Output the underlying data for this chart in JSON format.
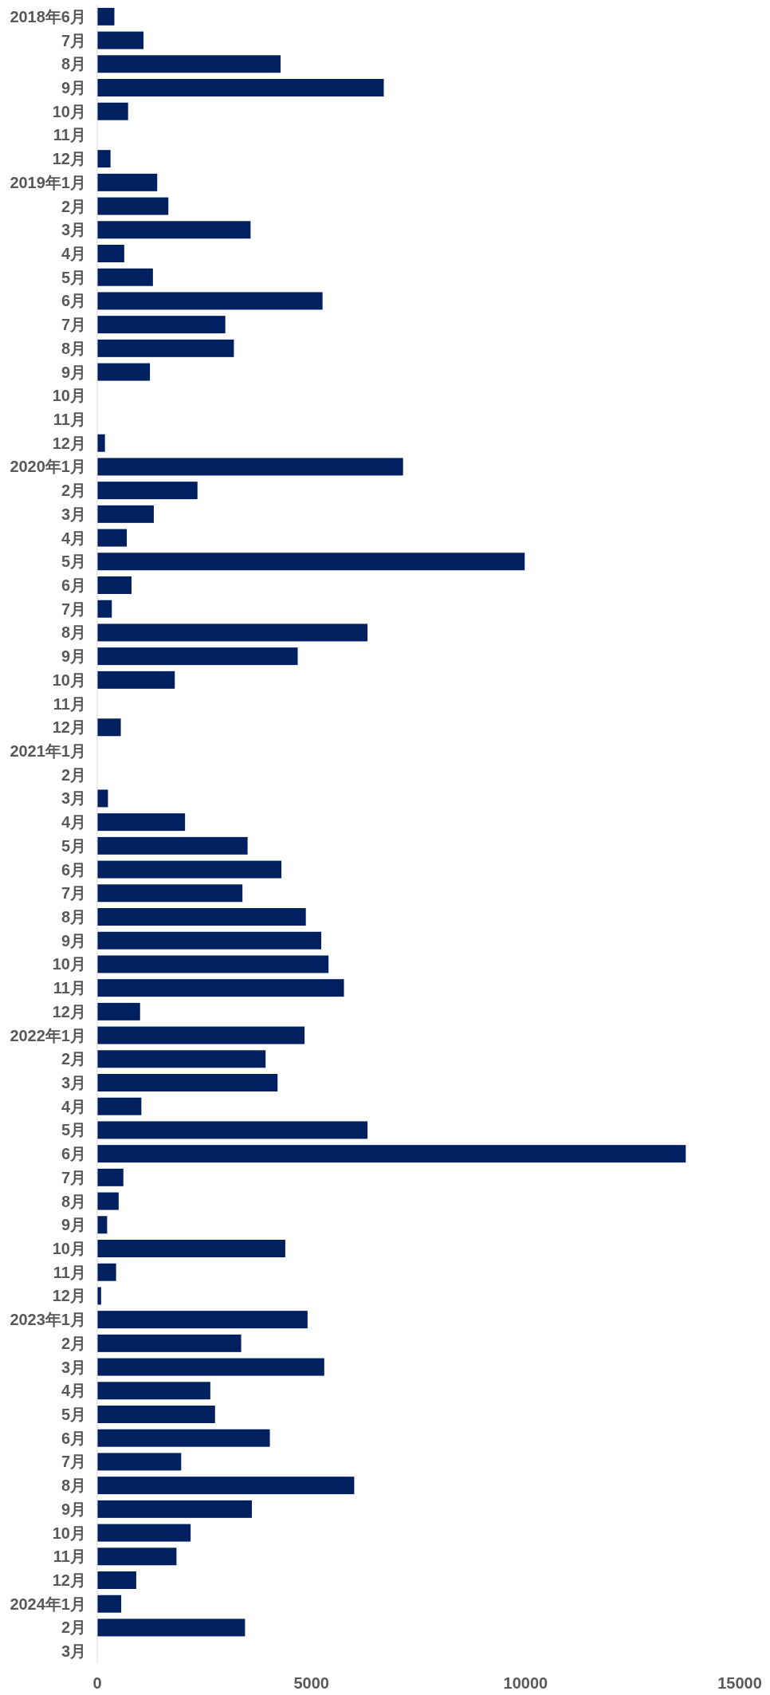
{
  "chart_data": {
    "type": "bar",
    "orientation": "horizontal",
    "color": "#002060",
    "categories": [
      "2018年6月",
      "7月",
      "8月",
      "9月",
      "10月",
      "11月",
      "12月",
      "2019年1月",
      "2月",
      "3月",
      "4月",
      "5月",
      "6月",
      "7月",
      "8月",
      "9月",
      "10月",
      "11月",
      "12月",
      "2020年1月",
      "2月",
      "3月",
      "4月",
      "5月",
      "6月",
      "7月",
      "8月",
      "9月",
      "10月",
      "11月",
      "12月",
      "2021年1月",
      "2月",
      "3月",
      "4月",
      "5月",
      "6月",
      "7月",
      "8月",
      "9月",
      "10月",
      "11月",
      "12月",
      "2022年1月",
      "2月",
      "3月",
      "4月",
      "5月",
      "6月",
      "7月",
      "8月",
      "9月",
      "10月",
      "11月",
      "12月",
      "2023年1月",
      "2月",
      "3月",
      "4月",
      "5月",
      "6月",
      "7月",
      "8月",
      "9月",
      "10月",
      "11月",
      "12月",
      "2024年1月",
      "2月",
      "3月"
    ],
    "values": [
      400,
      1080,
      4280,
      6690,
      720,
      0,
      310,
      1400,
      1660,
      3580,
      630,
      1300,
      5260,
      2990,
      3190,
      1230,
      0,
      0,
      180,
      7140,
      2340,
      1320,
      690,
      9980,
      800,
      340,
      6310,
      4680,
      1810,
      0,
      550,
      0,
      0,
      250,
      2050,
      3510,
      4300,
      3390,
      4870,
      5230,
      5400,
      5760,
      1000,
      4840,
      3930,
      4210,
      1030,
      6310,
      13740,
      610,
      500,
      230,
      4390,
      440,
      90,
      4910,
      3360,
      5300,
      2640,
      2750,
      4030,
      1960,
      6000,
      3610,
      2180,
      1850,
      910,
      560,
      3450,
      0
    ],
    "xlim": [
      0,
      15000
    ],
    "xticks": [
      0,
      5000,
      10000,
      15000
    ]
  }
}
